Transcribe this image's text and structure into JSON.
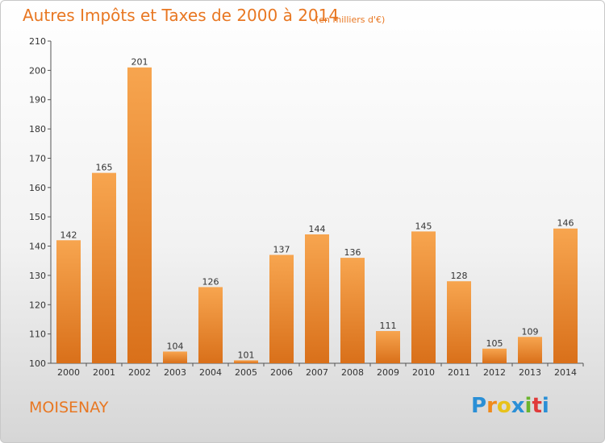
{
  "title": "Autres Impôts et Taxes de 2000 à 2014",
  "subtitle": "(en milliers d'€)",
  "commune": "MOISENAY",
  "logo": {
    "letters": [
      "P",
      "r",
      "o",
      "x",
      "i",
      "t",
      "i"
    ],
    "colors": [
      "#2a8fd6",
      "#f08a1c",
      "#e8c21a",
      "#2a8fd6",
      "#6ab42d",
      "#e03a3a",
      "#2a8fd6"
    ]
  },
  "colors": {
    "bar_light": "#f7a54f",
    "bar_dark": "#d9701a",
    "accent": "#e87722"
  },
  "chart_data": {
    "type": "bar",
    "categories": [
      "2000",
      "2001",
      "2002",
      "2003",
      "2004",
      "2005",
      "2006",
      "2007",
      "2008",
      "2009",
      "2010",
      "2011",
      "2012",
      "2013",
      "2014"
    ],
    "values": [
      142,
      165,
      201,
      104,
      126,
      101,
      137,
      144,
      136,
      111,
      145,
      128,
      105,
      109,
      146
    ],
    "title": "Autres Impôts et Taxes de 2000 à 2014",
    "xlabel": "",
    "ylabel": "",
    "ylim": [
      100,
      210
    ],
    "yticks": [
      100,
      110,
      120,
      130,
      140,
      150,
      160,
      170,
      180,
      190,
      200,
      210
    ],
    "grid": false,
    "data_labels": true
  }
}
